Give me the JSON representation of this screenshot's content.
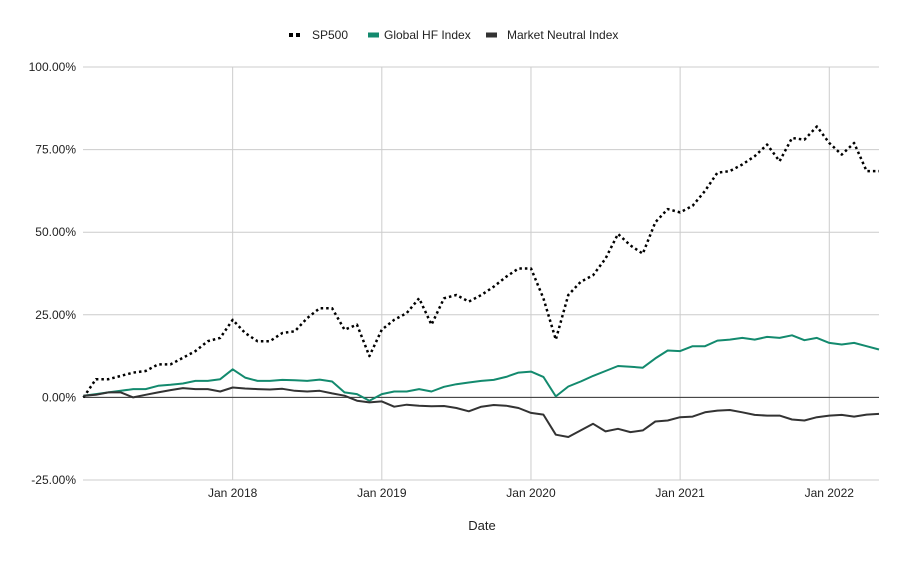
{
  "chart_data": {
    "type": "line",
    "title": "",
    "xlabel": "Date",
    "ylabel": "",
    "x_start": "2017-01",
    "x_end": "2022-05",
    "x_tick_labels": [
      "Jan 2018",
      "Jan 2019",
      "Jan 2020",
      "Jan 2021",
      "Jan 2022"
    ],
    "y_tick_labels": [
      "100.00%",
      "75.00%",
      "50.00%",
      "25.00%",
      "0.00%",
      "-25.00%"
    ],
    "ylim": [
      -25,
      100
    ],
    "y_unit": "%",
    "grid": true,
    "legend_position": "top",
    "x": [
      "2017-01",
      "2017-02",
      "2017-03",
      "2017-04",
      "2017-05",
      "2017-06",
      "2017-07",
      "2017-08",
      "2017-09",
      "2017-10",
      "2017-11",
      "2017-12",
      "2018-01",
      "2018-02",
      "2018-03",
      "2018-04",
      "2018-05",
      "2018-06",
      "2018-07",
      "2018-08",
      "2018-09",
      "2018-10",
      "2018-11",
      "2018-12",
      "2019-01",
      "2019-02",
      "2019-03",
      "2019-04",
      "2019-05",
      "2019-06",
      "2019-07",
      "2019-08",
      "2019-09",
      "2019-10",
      "2019-11",
      "2019-12",
      "2020-01",
      "2020-02",
      "2020-03",
      "2020-04",
      "2020-05",
      "2020-06",
      "2020-07",
      "2020-08",
      "2020-09",
      "2020-10",
      "2020-11",
      "2020-12",
      "2021-01",
      "2021-02",
      "2021-03",
      "2021-04",
      "2021-05",
      "2021-06",
      "2021-07",
      "2021-08",
      "2021-09",
      "2021-10",
      "2021-11",
      "2021-12",
      "2022-01",
      "2022-02",
      "2022-03",
      "2022-04",
      "2022-05"
    ],
    "series": [
      {
        "name": "SP500",
        "color": "#000000",
        "dash": "dotted",
        "values": [
          0.0,
          5.5,
          5.5,
          6.5,
          7.5,
          8.0,
          10.0,
          10.0,
          12.0,
          14.0,
          17.0,
          18.0,
          23.5,
          19.5,
          17.0,
          17.0,
          19.5,
          20.0,
          24.0,
          27.0,
          27.0,
          20.5,
          22.0,
          12.5,
          20.5,
          23.5,
          25.5,
          30.0,
          22.0,
          30.0,
          31.0,
          29.0,
          31.0,
          33.5,
          36.5,
          39.0,
          39.0,
          30.0,
          17.5,
          31.0,
          35.0,
          37.0,
          42.0,
          49.5,
          46.0,
          43.5,
          53.0,
          57.0,
          56.0,
          58.0,
          62.5,
          68.0,
          68.5,
          70.5,
          73.0,
          76.5,
          71.5,
          78.5,
          78.0,
          82.0,
          77.0,
          73.5,
          77.0,
          68.5,
          68.5
        ]
      },
      {
        "name": "Global HF Index",
        "color": "#138a6e",
        "dash": "solid",
        "values": [
          0.5,
          1.0,
          1.5,
          2.0,
          2.5,
          2.5,
          3.5,
          3.8,
          4.2,
          5.0,
          5.0,
          5.5,
          8.5,
          6.0,
          5.0,
          5.0,
          5.3,
          5.2,
          5.0,
          5.4,
          4.8,
          1.5,
          1.0,
          -1.0,
          1.0,
          1.8,
          1.8,
          2.5,
          1.8,
          3.2,
          4.0,
          4.5,
          5.0,
          5.3,
          6.2,
          7.5,
          7.8,
          6.2,
          0.3,
          3.3,
          4.8,
          6.5,
          8.0,
          9.5,
          9.3,
          9.0,
          11.8,
          14.2,
          14.0,
          15.5,
          15.5,
          17.2,
          17.5,
          18.0,
          17.5,
          18.3,
          18.0,
          18.8,
          17.3,
          18.0,
          16.5,
          16.0,
          16.5,
          15.5,
          14.5
        ]
      },
      {
        "name": "Market Neutral Index",
        "color": "#333333",
        "dash": "solid",
        "values": [
          0.5,
          0.8,
          1.5,
          1.5,
          0.0,
          0.8,
          1.5,
          2.2,
          2.8,
          2.5,
          2.5,
          1.8,
          3.0,
          2.7,
          2.5,
          2.4,
          2.6,
          2.0,
          1.8,
          2.0,
          1.2,
          0.5,
          -1.0,
          -1.5,
          -1.2,
          -2.8,
          -2.2,
          -2.5,
          -2.7,
          -2.6,
          -3.2,
          -4.2,
          -2.8,
          -2.3,
          -2.5,
          -3.2,
          -4.7,
          -5.2,
          -11.3,
          -12.0,
          -10.0,
          -8.0,
          -10.3,
          -9.5,
          -10.5,
          -10.0,
          -7.3,
          -7.0,
          -6.0,
          -5.8,
          -4.5,
          -4.0,
          -3.8,
          -4.5,
          -5.3,
          -5.5,
          -5.5,
          -6.7,
          -7.0,
          -6.0,
          -5.5,
          -5.3,
          -5.8,
          -5.2,
          -5.0
        ]
      }
    ]
  }
}
